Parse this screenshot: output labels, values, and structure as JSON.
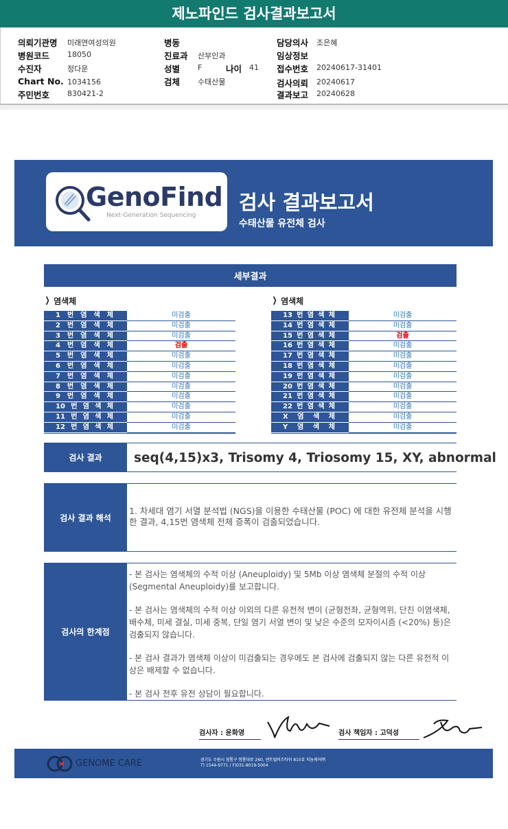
{
  "header": {
    "title": "제노파인드 검사결과보고서"
  },
  "patient_info": [
    {
      "label": "의뢰기관명",
      "value": "미래연여성의원"
    },
    {
      "label": "병원코드",
      "value": "18050"
    },
    {
      "label": "수진자",
      "value": "정다운"
    },
    {
      "label": "Chart No.",
      "value": "1034156"
    },
    {
      "label": "주민번호",
      "value": "830421-2"
    },
    {
      "label": "병동"
    },
    {
      "label": "진료과",
      "value": "산부인과"
    },
    {
      "label": "성별",
      "value": "F"
    },
    {
      "label": "나이",
      "value": "41"
    },
    {
      "label": "검체",
      "value": "수태산물"
    },
    {
      "label": "담당의사",
      "value": "조은혜"
    },
    {
      "label": "임상정보"
    },
    {
      "label": "접수번호",
      "value": "20240617-31401"
    },
    {
      "label": "검사의뢰",
      "value": "20240617"
    },
    {
      "label": "결과보고",
      "value": "20240628"
    }
  ],
  "banner": {
    "logo": "GenoFind",
    "logo_tagline": "Next-Generation Sequencing",
    "title": "검사 결과보고서",
    "subtitle": "수태산물 유전체 검사"
  },
  "details": {
    "title": "세부결과",
    "columns": [
      {
        "heading": "염색체",
        "rows": [
          {
            "name": "1 번 염 색 체",
            "result": "미검출",
            "color": "#2e75b6"
          },
          {
            "name": "2 번 염 색 체",
            "result": "미검출",
            "color": "#2e75b6"
          },
          {
            "name": "3 번 염 색 체",
            "result": "미검출",
            "color": "#2e75b6"
          },
          {
            "name": "4 번 염 색 체",
            "result": "검출",
            "color": "#e00000"
          },
          {
            "name": "5 번 염 색 체",
            "result": "미검출",
            "color": "#2e75b6"
          },
          {
            "name": "6 번 염 색 체",
            "result": "미검출",
            "color": "#2e75b6"
          },
          {
            "name": "7 번 염 색 체",
            "result": "미검출",
            "color": "#2e75b6"
          },
          {
            "name": "8 번 염 색 체",
            "result": "미검출",
            "color": "#2e75b6"
          },
          {
            "name": "9 번 염 색 체",
            "result": "미검출",
            "color": "#2e75b6"
          },
          {
            "name": "10 번 염 색 체",
            "result": "미검출",
            "color": "#2e75b6"
          },
          {
            "name": "11 번 염 색 체",
            "result": "미검출",
            "color": "#2e75b6"
          },
          {
            "name": "12 번 염 색 체",
            "result": "미검출",
            "color": "#2e75b6"
          }
        ]
      },
      {
        "heading": "염색체",
        "rows": [
          {
            "name": "13 번 염 색 체",
            "result": "미검출",
            "color": "#2e75b6"
          },
          {
            "name": "14 번 염 색 체",
            "result": "미검출",
            "color": "#2e75b6"
          },
          {
            "name": "15 번 염 색 체",
            "result": "검출",
            "color": "#e00000"
          },
          {
            "name": "16 번 염 색 체",
            "result": "미검출",
            "color": "#2e75b6"
          },
          {
            "name": "17 번 염 색 체",
            "result": "미검출",
            "color": "#2e75b6"
          },
          {
            "name": "18 번 염 색 체",
            "result": "미검출",
            "color": "#2e75b6"
          },
          {
            "name": "19 번 염 색 체",
            "result": "미검출",
            "color": "#2e75b6"
          },
          {
            "name": "20 번 염 색 체",
            "result": "미검출",
            "color": "#2e75b6"
          },
          {
            "name": "21 번 염 색 체",
            "result": "미검출",
            "color": "#2e75b6"
          },
          {
            "name": "22 번 염 색 체",
            "result": "미검출",
            "color": "#2e75b6"
          },
          {
            "name": "X 염 색 체",
            "result": "미검출",
            "color": "#2e75b6"
          },
          {
            "name": "Y 염 색 체",
            "result": "미검출",
            "color": "#2e75b6"
          }
        ]
      }
    ]
  },
  "result": {
    "label": "검사 결과",
    "value": "seq(4,15)x3, Trisomy 4, Triosomy 15, XY, abnormal"
  },
  "interpretation": {
    "label": "검사 결과 해석",
    "text": "1. 차세대 염기 서열 분석법 (NGS)을 이용한 수태산물 (POC) 에 대한 유전체 분석을 시행한 결과, 4,15번 염색체 전체 증폭이 검출되었습니다."
  },
  "limitations": {
    "label": "검사의 한계점",
    "paragraphs": [
      "- 본 검사는 염색체의 수적 이상 (Aneuploidy) 및 5Mb 이상 염색체 분절의 수적 이상 (Segmental Aneuploidy)를 보고합니다.",
      "- 본 검사는 염색체의 수적 이상 이외의 다른 유전적 변이 (균형전좌, 균형역위, 단친 이염색체, 배수체, 미세 결실, 미세 중복, 단일 염기 서열 변이 및 낮은 수준의 모자이시즘 (<20%) 등)은 검출되지 않습니다.",
      "- 본 검사 결과가 염색체 이상이 미검출되는 경우에도 본 검사에 검출되지 않는 다른 유전적 이상은 배제할 수 없습니다.",
      "- 본 검사 전후 유전 상담이 필요합니다."
    ]
  },
  "signatures": {
    "tester": "검사자 : 윤화영",
    "supervisor": "검사 책임자 : 고덕성"
  },
  "footer": {
    "company": "GENOME CARE",
    "address": [
      "경기도 수원시 영통구 청룡대로 260, 센트럴비즈타워 810호 지놈케어㈜",
      "T) 1544-9771 / F)031-8019-5004"
    ]
  }
}
